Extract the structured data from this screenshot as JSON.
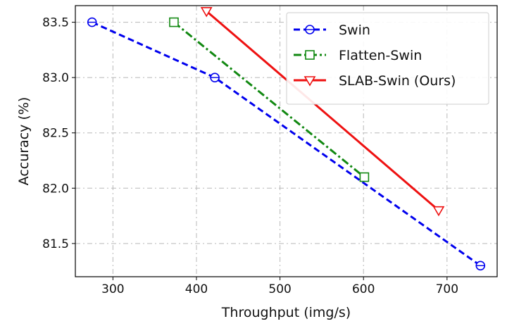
{
  "chart_data": {
    "type": "line",
    "title": "",
    "xlabel": "Throughput (img/s)",
    "ylabel": "Accuracy (%)",
    "xlim": [
      255,
      760
    ],
    "ylim": [
      81.2,
      83.65
    ],
    "xticks": [
      300,
      400,
      500,
      600,
      700
    ],
    "xtick_labels": [
      "300",
      "400",
      "500",
      "600",
      "700"
    ],
    "yticks": [
      81.5,
      82.0,
      82.5,
      83.0,
      83.5
    ],
    "ytick_labels": [
      "81.5",
      "82.0",
      "82.5",
      "83.0",
      "83.5"
    ],
    "grid": true,
    "legend_position": "top-right",
    "series": [
      {
        "name": "Swin",
        "color": "#0000ee",
        "line_style": "dashed",
        "marker": "circle",
        "x": [
          275,
          422,
          740
        ],
        "y": [
          83.5,
          83.0,
          81.3
        ]
      },
      {
        "name": "Flatten-Swin",
        "color": "#118811",
        "line_style": "dash-dot",
        "marker": "square",
        "x": [
          373,
          601
        ],
        "y": [
          83.5,
          82.1
        ]
      },
      {
        "name": "SLAB-Swin (Ours)",
        "color": "#ee1111",
        "line_style": "solid",
        "marker": "triangle-down",
        "x": [
          412,
          690
        ],
        "y": [
          83.6,
          81.8
        ]
      }
    ]
  }
}
